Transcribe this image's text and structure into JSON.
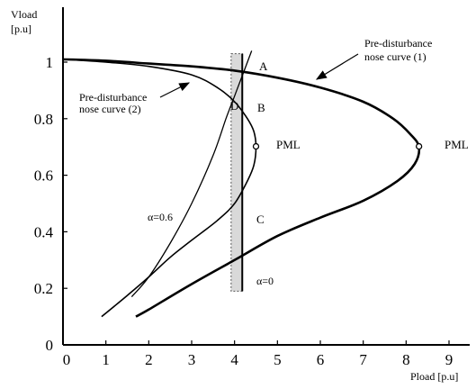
{
  "chart_data": {
    "type": "line",
    "title": "",
    "xlabel": "Pload [p.u]",
    "ylabel_line1": "Vload",
    "ylabel_line2": "[p.u]",
    "xlim": [
      0,
      9
    ],
    "ylim": [
      0,
      1.1
    ],
    "x_ticks": [
      0,
      1,
      2,
      3,
      4,
      5,
      6,
      7,
      8,
      9
    ],
    "y_ticks": [
      0,
      0.2,
      0.4,
      0.6,
      0.8,
      1
    ],
    "grid": false,
    "series": [
      {
        "name": "Pre-disturbance nose curve (1)",
        "style": "thick",
        "points": [
          [
            0,
            1.01
          ],
          [
            1,
            1.005
          ],
          [
            2,
            0.995
          ],
          [
            3,
            0.985
          ],
          [
            4,
            0.97
          ],
          [
            5,
            0.945
          ],
          [
            6,
            0.91
          ],
          [
            7,
            0.86
          ],
          [
            7.7,
            0.8
          ],
          [
            8.1,
            0.745
          ],
          [
            8.3,
            0.7
          ],
          [
            8.2,
            0.64
          ],
          [
            7.8,
            0.58
          ],
          [
            7,
            0.51
          ],
          [
            6,
            0.45
          ],
          [
            5,
            0.385
          ],
          [
            4,
            0.3
          ],
          [
            3,
            0.215
          ],
          [
            2,
            0.125
          ],
          [
            1.7,
            0.1
          ]
        ]
      },
      {
        "name": "Pre-disturbance nose curve (2)",
        "style": "thin",
        "points": [
          [
            0,
            1.01
          ],
          [
            1,
            1.0
          ],
          [
            2,
            0.985
          ],
          [
            3,
            0.955
          ],
          [
            3.6,
            0.91
          ],
          [
            4,
            0.86
          ],
          [
            4.3,
            0.8
          ],
          [
            4.45,
            0.755
          ],
          [
            4.5,
            0.7
          ],
          [
            4.45,
            0.635
          ],
          [
            4.3,
            0.58
          ],
          [
            4.0,
            0.5
          ],
          [
            3.6,
            0.44
          ],
          [
            3,
            0.37
          ],
          [
            2.5,
            0.31
          ],
          [
            2,
            0.24
          ],
          [
            1.5,
            0.175
          ],
          [
            0.9,
            0.1
          ]
        ]
      },
      {
        "name": "α=0.6",
        "style": "thin",
        "points": [
          [
            1.6,
            0.17
          ],
          [
            2,
            0.24
          ],
          [
            2.5,
            0.36
          ],
          [
            3,
            0.5
          ],
          [
            3.5,
            0.67
          ],
          [
            3.8,
            0.8
          ],
          [
            4,
            0.88
          ],
          [
            4.2,
            0.96
          ],
          [
            4.4,
            1.04
          ]
        ]
      },
      {
        "name": "α=0",
        "style": "vertical",
        "points": [
          [
            4.18,
            0.19
          ],
          [
            4.18,
            1.03
          ]
        ]
      }
    ],
    "band": {
      "x_from": 3.92,
      "x_to": 4.18,
      "y_from": 0.19,
      "y_to": 1.03
    },
    "points": [
      {
        "label": "A",
        "x": 4.18,
        "y": 0.962
      },
      {
        "label": "B",
        "x": 4.18,
        "y": 0.85
      },
      {
        "label": "C",
        "x": 4.18,
        "y": 0.537
      },
      {
        "label": "D",
        "x": 4.04,
        "y": 0.85
      },
      {
        "label": "PML",
        "x": 4.5,
        "y": 0.702,
        "marker": true
      },
      {
        "label": "PML",
        "x": 8.3,
        "y": 0.702,
        "marker": true
      }
    ],
    "annotations": {
      "curve1_line1": "Pre-disturbance",
      "curve1_line2": "nose curve (1)",
      "curve2_line1": "Pre-disturbance",
      "curve2_line2": "nose curve (2)",
      "alpha06": "α=0.6",
      "alpha0": "α=0"
    }
  }
}
